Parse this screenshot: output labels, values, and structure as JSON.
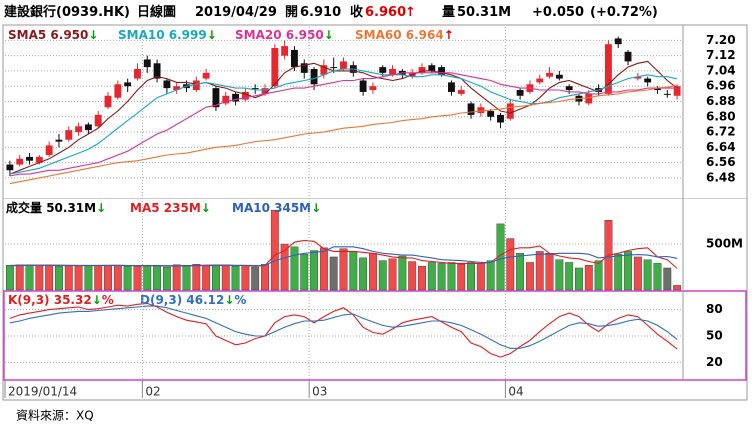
{
  "header": {
    "name": "建設銀行(0939.HK)",
    "period": "日線圖",
    "date": "2019/04/29",
    "open_label": "開",
    "open": "6.910",
    "close_label": "收",
    "close": "6.960",
    "close_arrow": "↑",
    "volume_label": "量",
    "volume": "50.31M",
    "change": "+0.050",
    "change_pct": "(+0.72%)",
    "up_color": "#e00000"
  },
  "source": "資料來源：XQ",
  "chart_data": [
    {
      "type": "candlestick",
      "up_color": "#e8262d",
      "down_color": "#111111",
      "flat_color": "#111111",
      "ohlc": [
        [
          6.55,
          6.57,
          6.49,
          6.52
        ],
        [
          6.55,
          6.6,
          6.54,
          6.58
        ],
        [
          6.59,
          6.61,
          6.55,
          6.57
        ],
        [
          6.56,
          6.6,
          6.55,
          6.59
        ],
        [
          6.6,
          6.67,
          6.59,
          6.65
        ],
        [
          6.68,
          6.71,
          6.64,
          6.67
        ],
        [
          6.68,
          6.75,
          6.67,
          6.73
        ],
        [
          6.72,
          6.77,
          6.7,
          6.75
        ],
        [
          6.76,
          6.77,
          6.71,
          6.73
        ],
        [
          6.75,
          6.83,
          6.74,
          6.81
        ],
        [
          6.85,
          6.93,
          6.84,
          6.91
        ],
        [
          6.9,
          6.99,
          6.89,
          6.97
        ],
        [
          6.98,
          7.0,
          6.93,
          6.96
        ],
        [
          7.0,
          7.08,
          6.99,
          7.05
        ],
        [
          7.1,
          7.12,
          7.03,
          7.06
        ],
        [
          7.08,
          7.1,
          6.98,
          7.0
        ],
        [
          6.99,
          7.0,
          6.92,
          6.95
        ],
        [
          6.94,
          6.98,
          6.92,
          6.96
        ],
        [
          6.97,
          6.99,
          6.93,
          6.95
        ],
        [
          6.94,
          7.01,
          6.93,
          6.99
        ],
        [
          7.0,
          7.05,
          6.99,
          7.03
        ],
        [
          6.95,
          6.96,
          6.83,
          6.85
        ],
        [
          6.87,
          6.93,
          6.86,
          6.91
        ],
        [
          6.92,
          6.93,
          6.86,
          6.88
        ],
        [
          6.89,
          6.95,
          6.88,
          6.93
        ],
        [
          6.95,
          6.97,
          6.92,
          6.95
        ],
        [
          6.92,
          6.97,
          6.91,
          6.95
        ],
        [
          6.96,
          7.18,
          6.95,
          7.16
        ],
        [
          7.12,
          7.2,
          7.1,
          7.17
        ],
        [
          7.15,
          7.17,
          7.04,
          7.06
        ],
        [
          7.08,
          7.1,
          7.0,
          7.03
        ],
        [
          7.05,
          7.06,
          6.94,
          6.97
        ],
        [
          7.02,
          7.1,
          7.0,
          7.07
        ],
        [
          7.06,
          7.11,
          7.03,
          7.06
        ],
        [
          7.05,
          7.11,
          7.04,
          7.09
        ],
        [
          7.07,
          7.09,
          7.01,
          7.03
        ],
        [
          6.99,
          7.0,
          6.91,
          6.93
        ],
        [
          6.94,
          6.98,
          6.92,
          6.96
        ],
        [
          7.06,
          7.07,
          7.01,
          7.03
        ],
        [
          7.02,
          7.07,
          7.01,
          7.05
        ],
        [
          7.04,
          7.05,
          7.0,
          7.02
        ],
        [
          7.01,
          7.05,
          7.0,
          7.03
        ],
        [
          7.03,
          7.08,
          7.02,
          7.06
        ],
        [
          7.07,
          7.08,
          7.03,
          7.04
        ],
        [
          7.06,
          7.07,
          7.01,
          7.02
        ],
        [
          6.98,
          6.99,
          6.91,
          6.93
        ],
        [
          6.92,
          6.96,
          6.91,
          6.94
        ],
        [
          6.87,
          6.88,
          6.79,
          6.81
        ],
        [
          6.82,
          6.87,
          6.8,
          6.85
        ],
        [
          6.83,
          6.84,
          6.78,
          6.8
        ],
        [
          6.81,
          6.82,
          6.74,
          6.77
        ],
        [
          6.79,
          6.89,
          6.78,
          6.87
        ],
        [
          6.94,
          6.95,
          6.89,
          6.91
        ],
        [
          6.93,
          6.99,
          6.92,
          6.97
        ],
        [
          6.98,
          7.02,
          6.97,
          7.0
        ],
        [
          7.01,
          7.06,
          7.0,
          7.03
        ],
        [
          7.02,
          7.04,
          6.99,
          7.0
        ],
        [
          6.96,
          6.97,
          6.92,
          6.94
        ],
        [
          6.91,
          6.92,
          6.86,
          6.88
        ],
        [
          6.87,
          6.94,
          6.86,
          6.92
        ],
        [
          6.95,
          6.97,
          6.91,
          6.93
        ],
        [
          6.92,
          7.2,
          6.91,
          7.18
        ],
        [
          7.21,
          7.22,
          7.16,
          7.18
        ],
        [
          7.14,
          7.15,
          7.07,
          7.09
        ],
        [
          7.0,
          7.03,
          6.99,
          7.01
        ],
        [
          7.0,
          7.01,
          6.96,
          6.98
        ],
        [
          6.95,
          6.96,
          6.92,
          6.94
        ],
        [
          6.92,
          6.94,
          6.9,
          6.92
        ],
        [
          6.91,
          6.97,
          6.89,
          6.96
        ]
      ],
      "series": [
        {
          "name": "SMA5",
          "value_label": "6.950",
          "arrow": "↓",
          "arrow_color": "#00a000",
          "color": "#8b1a1a",
          "values": [
            6.5,
            6.52,
            6.54,
            6.56,
            6.58,
            6.61,
            6.64,
            6.68,
            6.71,
            6.74,
            6.79,
            6.83,
            6.88,
            6.94,
            6.99,
            7.01,
            7.0,
            6.98,
            6.98,
            6.97,
            6.98,
            6.96,
            6.95,
            6.93,
            6.92,
            6.9,
            6.92,
            6.97,
            7.03,
            7.06,
            7.07,
            7.08,
            7.06,
            7.04,
            7.04,
            7.04,
            7.03,
            7.01,
            7.0,
            6.99,
            7.0,
            7.02,
            7.04,
            7.04,
            7.03,
            7.02,
            7.0,
            6.95,
            6.91,
            6.87,
            6.83,
            6.82,
            6.84,
            6.86,
            6.9,
            6.95,
            6.98,
            6.99,
            6.97,
            6.95,
            6.93,
            6.97,
            7.02,
            7.06,
            7.08,
            7.09,
            7.04,
            6.99,
            6.95
          ]
        },
        {
          "name": "SMA10",
          "value_label": "6.999",
          "arrow": "↓",
          "arrow_color": "#00a000",
          "color": "#17a9c4",
          "values": [
            6.5,
            6.51,
            6.52,
            6.53,
            6.55,
            6.57,
            6.59,
            6.61,
            6.63,
            6.66,
            6.7,
            6.74,
            6.78,
            6.82,
            6.86,
            6.9,
            6.92,
            6.94,
            6.96,
            6.97,
            6.98,
            6.97,
            6.96,
            6.95,
            6.95,
            6.94,
            6.94,
            6.95,
            6.97,
            6.98,
            6.99,
            7.0,
            7.02,
            7.04,
            7.05,
            7.05,
            7.04,
            7.03,
            7.02,
            7.02,
            7.02,
            7.01,
            7.01,
            7.02,
            7.02,
            7.01,
            7.0,
            6.98,
            6.96,
            6.93,
            6.91,
            6.89,
            6.88,
            6.87,
            6.87,
            6.88,
            6.9,
            6.91,
            6.92,
            6.93,
            6.94,
            6.96,
            6.98,
            7.0,
            7.01,
            7.02,
            7.01,
            7.01,
            6.999
          ]
        },
        {
          "name": "SMA20",
          "value_label": "6.950",
          "arrow": "↓",
          "arrow_color": "#00a000",
          "color": "#d9339a",
          "values": [
            6.49,
            6.5,
            6.5,
            6.51,
            6.52,
            6.52,
            6.53,
            6.54,
            6.55,
            6.56,
            6.58,
            6.6,
            6.62,
            6.65,
            6.68,
            6.71,
            6.73,
            6.76,
            6.79,
            6.82,
            6.85,
            6.86,
            6.88,
            6.89,
            6.9,
            6.91,
            6.92,
            6.93,
            6.94,
            6.95,
            6.95,
            6.96,
            6.97,
            6.98,
            6.99,
            6.99,
            7.0,
            7.0,
            7.01,
            7.02,
            7.03,
            7.03,
            7.03,
            7.03,
            7.03,
            7.03,
            7.02,
            7.01,
            7.0,
            6.99,
            6.97,
            6.96,
            6.95,
            6.95,
            6.94,
            6.94,
            6.94,
            6.93,
            6.93,
            6.92,
            6.92,
            6.93,
            6.93,
            6.94,
            6.94,
            6.95,
            6.95,
            6.95,
            6.95
          ]
        },
        {
          "name": "SMA60",
          "value_label": "6.964",
          "arrow": "↑",
          "arrow_color": "#e00000",
          "color": "#ee7733",
          "values": [
            6.45,
            6.46,
            6.47,
            6.48,
            6.49,
            6.5,
            6.51,
            6.52,
            6.53,
            6.54,
            6.55,
            6.56,
            6.565,
            6.57,
            6.58,
            6.59,
            6.6,
            6.605,
            6.61,
            6.62,
            6.63,
            6.64,
            6.645,
            6.65,
            6.66,
            6.67,
            6.675,
            6.68,
            6.69,
            6.7,
            6.71,
            6.715,
            6.72,
            6.73,
            6.74,
            6.745,
            6.75,
            6.76,
            6.765,
            6.77,
            6.78,
            6.785,
            6.79,
            6.8,
            6.805,
            6.81,
            6.82,
            6.825,
            6.83,
            6.835,
            6.84,
            6.85,
            6.855,
            6.86,
            6.87,
            6.875,
            6.88,
            6.89,
            6.895,
            6.9,
            6.91,
            6.915,
            6.92,
            6.93,
            6.935,
            6.94,
            6.95,
            6.955,
            6.964
          ]
        }
      ],
      "ylim": [
        6.38,
        7.27
      ],
      "yticks": [
        {
          "value": 7.2,
          "label": "7.20"
        },
        7.12,
        7.04,
        6.96,
        6.88,
        {
          "value": 6.8,
          "label": "6.80"
        },
        6.72,
        6.64,
        6.56,
        6.48
      ],
      "grid": true
    },
    {
      "type": "bar",
      "name": "成交量",
      "value_label": "50.31M",
      "arrow": "↓",
      "arrow_color": "#00a000",
      "up_color": "#ef4b4b",
      "down_color": "#3fae49",
      "flat_color": "#6e6e6e",
      "values": [
        270,
        275,
        270,
        270,
        265,
        260,
        265,
        270,
        270,
        265,
        270,
        270,
        260,
        255,
        270,
        265,
        250,
        275,
        270,
        280,
        270,
        265,
        275,
        260,
        270,
        250,
        280,
        870,
        500,
        470,
        390,
        430,
        460,
        360,
        450,
        420,
        350,
        400,
        320,
        340,
        370,
        310,
        260,
        300,
        290,
        300,
        280,
        300,
        290,
        320,
        720,
        560,
        400,
        300,
        420,
        400,
        330,
        300,
        240,
        270,
        320,
        760,
        390,
        420,
        360,
        330,
        290,
        240,
        50.31
      ],
      "series": [
        {
          "name": "MA5",
          "value_label": "235M",
          "arrow": "↓",
          "arrow_color": "#00a000",
          "color": "#e02020",
          "values": [
            268,
            270,
            271,
            270,
            270,
            268,
            266,
            266,
            266,
            266,
            268,
            269,
            267,
            264,
            265,
            264,
            260,
            262,
            262,
            268,
            270,
            272,
            272,
            268,
            268,
            259,
            267,
            380,
            430,
            520,
            540,
            530,
            450,
            420,
            420,
            420,
            410,
            400,
            380,
            360,
            350,
            350,
            320,
            310,
            300,
            290,
            290,
            290,
            290,
            300,
            380,
            440,
            460,
            460,
            480,
            400,
            370,
            350,
            340,
            310,
            290,
            380,
            400,
            430,
            450,
            460,
            360,
            330,
            235
          ]
        },
        {
          "name": "MA10",
          "value_label": "345M",
          "arrow": "↓",
          "arrow_color": "#00a000",
          "color": "#2a62c0",
          "values": [
            265,
            266,
            268,
            269,
            270,
            270,
            269,
            268,
            268,
            268,
            268,
            268,
            267,
            266,
            266,
            266,
            265,
            265,
            264,
            265,
            266,
            267,
            268,
            268,
            268,
            266,
            268,
            320,
            350,
            380,
            400,
            410,
            420,
            470,
            470,
            470,
            450,
            420,
            400,
            390,
            380,
            380,
            365,
            350,
            330,
            325,
            320,
            310,
            300,
            300,
            340,
            360,
            370,
            380,
            390,
            390,
            400,
            400,
            400,
            390,
            350,
            360,
            370,
            380,
            385,
            380,
            360,
            365,
            345
          ]
        }
      ],
      "ylim": [
        0,
        980
      ],
      "yticks": [
        {
          "value": 500,
          "label": "500M"
        }
      ],
      "grid": true
    },
    {
      "type": "line",
      "series": [
        {
          "name": "K(9,3)",
          "value_label": "35.32",
          "arrow": "↓",
          "arrow_color": "#00a000",
          "suffix": "%",
          "color": "#e02020",
          "values": [
            70,
            74,
            76,
            78,
            80,
            81,
            82,
            83,
            80,
            81,
            83,
            85,
            84,
            86,
            87,
            83,
            77,
            72,
            68,
            66,
            64,
            50,
            45,
            40,
            42,
            47,
            50,
            65,
            72,
            74,
            72,
            65,
            72,
            78,
            82,
            74,
            60,
            54,
            52,
            58,
            65,
            68,
            70,
            72,
            66,
            60,
            55,
            42,
            38,
            30,
            26,
            30,
            38,
            45,
            55,
            64,
            72,
            76,
            72,
            62,
            55,
            64,
            70,
            74,
            72,
            62,
            52,
            44,
            35.32
          ]
        },
        {
          "name": "D(9,3)",
          "value_label": "46.12",
          "arrow": "↓",
          "arrow_color": "#00a000",
          "suffix": "%",
          "color": "#3070c0",
          "values": [
            65,
            67,
            70,
            72,
            74,
            76,
            77,
            78,
            78,
            79,
            80,
            81,
            82,
            83,
            84,
            84,
            82,
            79,
            76,
            73,
            70,
            65,
            60,
            55,
            52,
            50,
            50,
            55,
            60,
            64,
            67,
            67,
            68,
            71,
            74,
            75,
            70,
            66,
            62,
            60,
            61,
            63,
            65,
            67,
            67,
            65,
            62,
            57,
            52,
            46,
            40,
            36,
            36,
            39,
            44,
            50,
            56,
            62,
            65,
            64,
            61,
            62,
            64,
            67,
            69,
            67,
            62,
            55,
            46.12
          ]
        }
      ],
      "ylim": [
        0,
        100
      ],
      "yticks": [
        80,
        50,
        20
      ],
      "grid": true,
      "xticks": [
        {
          "value": 0,
          "label": "2019/01/14"
        },
        {
          "value": 14,
          "label": "02"
        },
        {
          "value": 31,
          "label": "03"
        },
        {
          "value": 51,
          "label": "04"
        }
      ]
    }
  ]
}
